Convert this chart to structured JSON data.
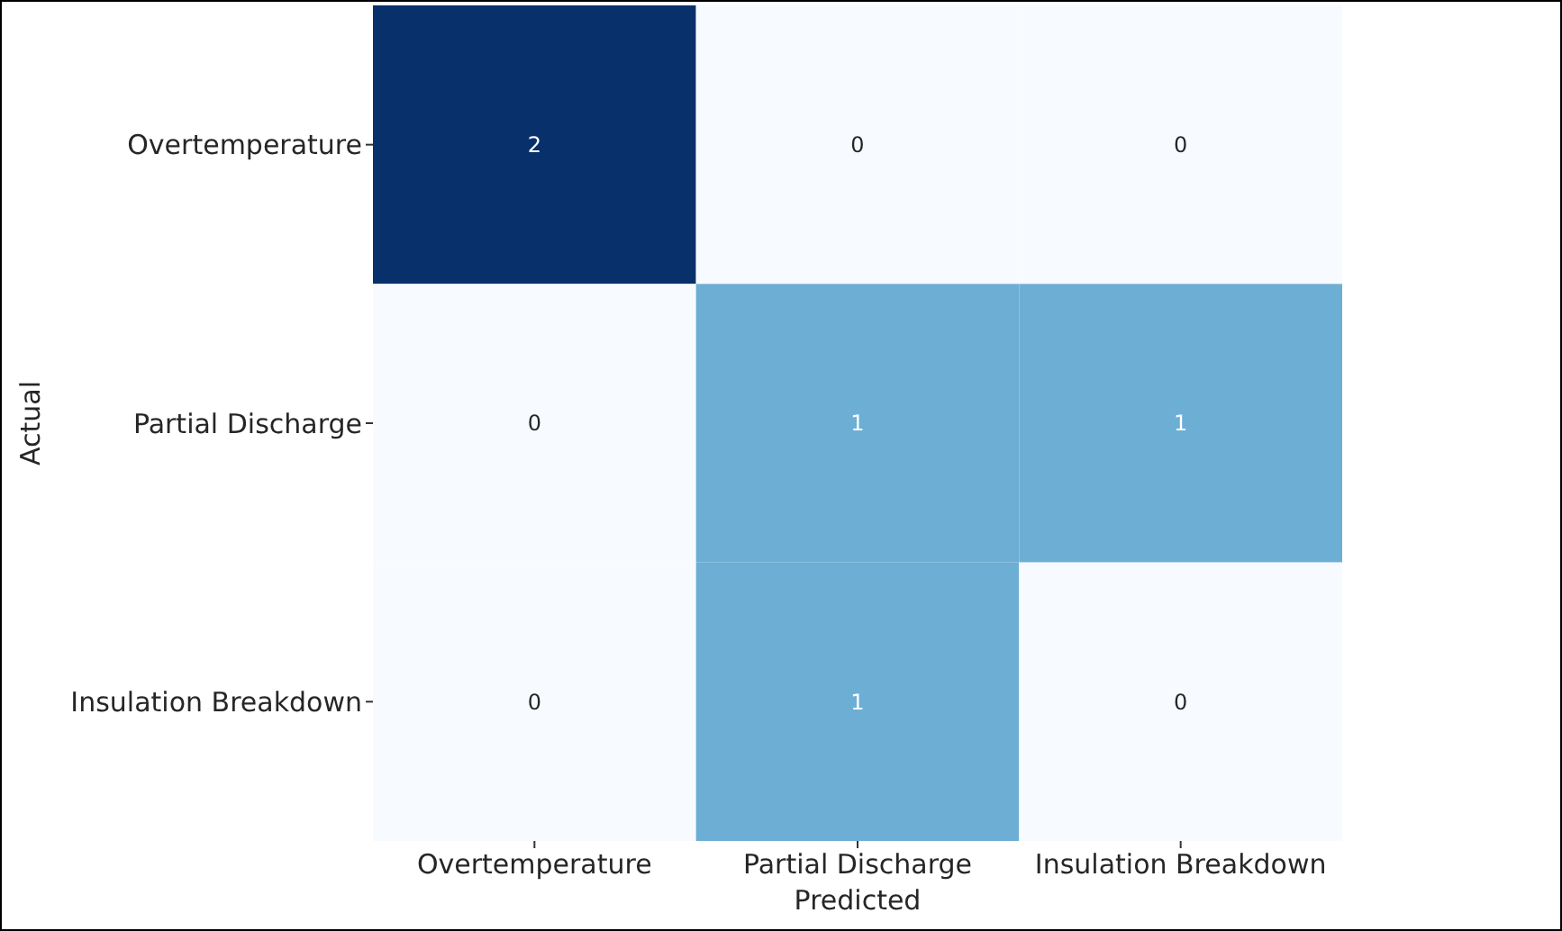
{
  "chart_data": {
    "type": "heatmap",
    "xlabel": "Predicted",
    "ylabel": "Actual",
    "categories": [
      "Overtemperature",
      "Partial Discharge",
      "Insulation Breakdown"
    ],
    "y_categories": [
      "Overtemperature",
      "Partial Discharge",
      "Insulation Breakdown"
    ],
    "cells": [
      [
        2,
        0,
        0
      ],
      [
        0,
        1,
        1
      ],
      [
        0,
        1,
        0
      ]
    ],
    "data_labels": true
  }
}
